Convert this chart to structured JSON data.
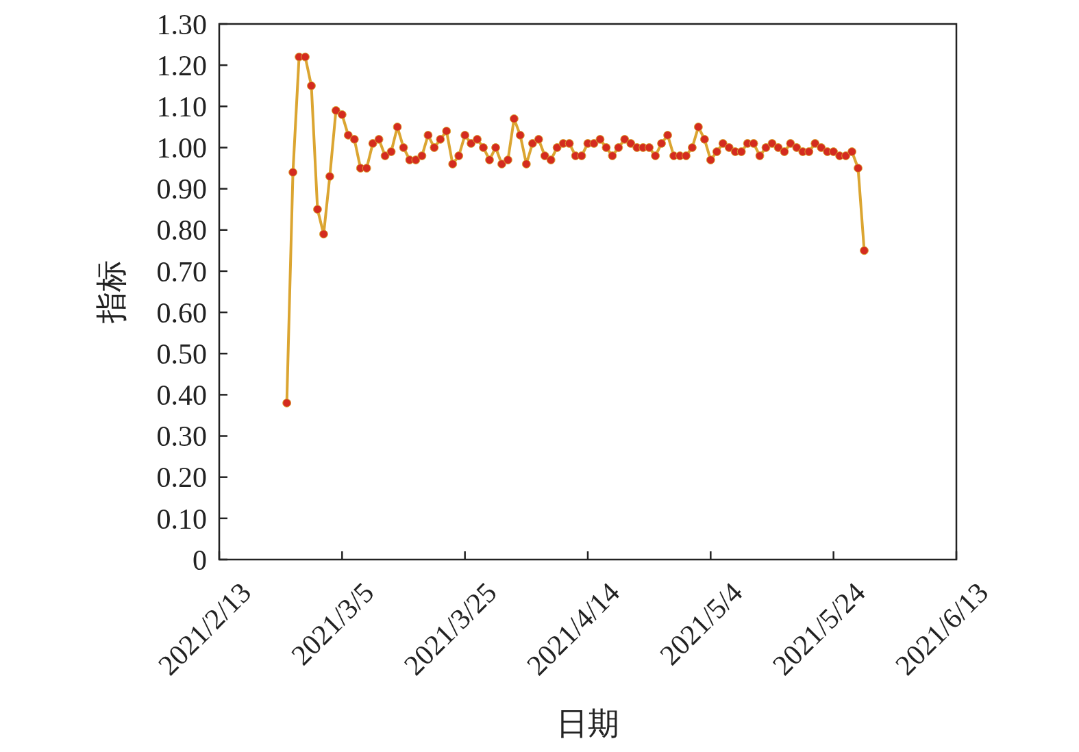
{
  "chart_data": {
    "type": "line",
    "xlabel": "日期",
    "ylabel": "指标",
    "marker": "circle",
    "grid": false,
    "xlim": [
      "2021-02-13",
      "2021-06-13"
    ],
    "xticks": [
      {
        "value": "2021-02-13",
        "label": "2021/2/13"
      },
      {
        "value": "2021-03-05",
        "label": "2021/3/5"
      },
      {
        "value": "2021-03-25",
        "label": "2021/3/25"
      },
      {
        "value": "2021-04-14",
        "label": "2021/4/14"
      },
      {
        "value": "2021-05-04",
        "label": "2021/5/4"
      },
      {
        "value": "2021-05-24",
        "label": "2021/5/24"
      },
      {
        "value": "2021-06-13",
        "label": "2021/6/13"
      }
    ],
    "ylim": [
      0,
      1.3
    ],
    "yticks": [
      0,
      {
        "value": 0.1,
        "label": "0.10"
      },
      {
        "value": 0.2,
        "label": "0.20"
      },
      {
        "value": 0.3,
        "label": "0.30"
      },
      {
        "value": 0.4,
        "label": "0.40"
      },
      {
        "value": 0.5,
        "label": "0.50"
      },
      {
        "value": 0.6,
        "label": "0.60"
      },
      {
        "value": 0.7,
        "label": "0.70"
      },
      {
        "value": 0.8,
        "label": "0.80"
      },
      {
        "value": 0.9,
        "label": "0.90"
      },
      {
        "value": 1.0,
        "label": "1.00"
      },
      {
        "value": 1.1,
        "label": "1.10"
      },
      {
        "value": 1.2,
        "label": "1.20"
      },
      {
        "value": 1.3,
        "label": "1.30"
      }
    ],
    "x": [
      "2021-02-24",
      "2021-02-25",
      "2021-02-26",
      "2021-02-27",
      "2021-02-28",
      "2021-03-01",
      "2021-03-02",
      "2021-03-03",
      "2021-03-04",
      "2021-03-05",
      "2021-03-06",
      "2021-03-07",
      "2021-03-08",
      "2021-03-09",
      "2021-03-10",
      "2021-03-11",
      "2021-03-12",
      "2021-03-13",
      "2021-03-14",
      "2021-03-15",
      "2021-03-16",
      "2021-03-17",
      "2021-03-18",
      "2021-03-19",
      "2021-03-20",
      "2021-03-21",
      "2021-03-22",
      "2021-03-23",
      "2021-03-24",
      "2021-03-25",
      "2021-03-26",
      "2021-03-27",
      "2021-03-28",
      "2021-03-29",
      "2021-03-30",
      "2021-03-31",
      "2021-04-01",
      "2021-04-02",
      "2021-04-03",
      "2021-04-04",
      "2021-04-05",
      "2021-04-06",
      "2021-04-07",
      "2021-04-08",
      "2021-04-09",
      "2021-04-10",
      "2021-04-11",
      "2021-04-12",
      "2021-04-13",
      "2021-04-14",
      "2021-04-15",
      "2021-04-16",
      "2021-04-17",
      "2021-04-18",
      "2021-04-19",
      "2021-04-20",
      "2021-04-21",
      "2021-04-22",
      "2021-04-23",
      "2021-04-24",
      "2021-04-25",
      "2021-04-26",
      "2021-04-27",
      "2021-04-28",
      "2021-04-29",
      "2021-04-30",
      "2021-05-01",
      "2021-05-02",
      "2021-05-03",
      "2021-05-04",
      "2021-05-05",
      "2021-05-06",
      "2021-05-07",
      "2021-05-08",
      "2021-05-09",
      "2021-05-10",
      "2021-05-11",
      "2021-05-12",
      "2021-05-13",
      "2021-05-14",
      "2021-05-15",
      "2021-05-16",
      "2021-05-17",
      "2021-05-18",
      "2021-05-19",
      "2021-05-20",
      "2021-05-21",
      "2021-05-22",
      "2021-05-23",
      "2021-05-24",
      "2021-05-25",
      "2021-05-26",
      "2021-05-27",
      "2021-05-28",
      "2021-05-29"
    ],
    "series": [
      {
        "color": "#dba531",
        "values": [
          0.38,
          0.94,
          1.22,
          1.22,
          1.15,
          0.85,
          0.79,
          0.93,
          1.09,
          1.08,
          1.03,
          1.02,
          0.95,
          0.95,
          1.01,
          1.02,
          0.98,
          0.99,
          1.05,
          1.0,
          0.97,
          0.97,
          0.98,
          1.03,
          1.0,
          1.02,
          1.04,
          0.96,
          0.98,
          1.03,
          1.01,
          1.02,
          1.0,
          0.97,
          1.0,
          0.96,
          0.97,
          1.07,
          1.03,
          0.96,
          1.01,
          1.02,
          0.98,
          0.97,
          1.0,
          1.01,
          1.01,
          0.98,
          0.98,
          1.01,
          1.01,
          1.02,
          1.0,
          0.98,
          1.0,
          1.02,
          1.01,
          1.0,
          1.0,
          1.0,
          0.98,
          1.01,
          1.03,
          0.98,
          0.98,
          0.98,
          1.0,
          1.05,
          1.02,
          0.97,
          0.99,
          1.01,
          1.0,
          0.99,
          0.99,
          1.01,
          1.01,
          0.98,
          1.0,
          1.01,
          1.0,
          0.99,
          1.01,
          1.0,
          0.99,
          0.99,
          1.01,
          1.0,
          0.99,
          0.99,
          0.98,
          0.98,
          0.99,
          0.95,
          0.75
        ]
      }
    ]
  }
}
